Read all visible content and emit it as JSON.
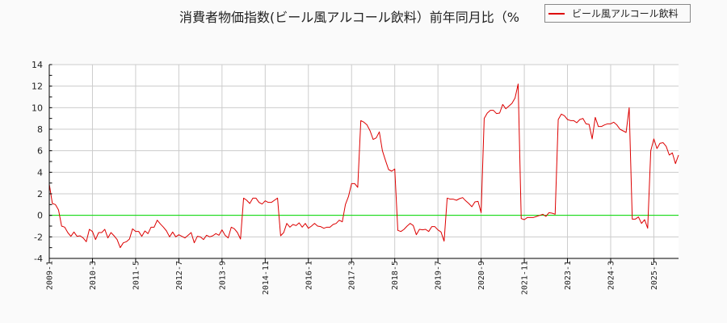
{
  "title": "消費者物価指数(ビール風アルコール飲料）前年同月比（%",
  "legend": {
    "label": "ビール風アルコール飲料",
    "color": "#dd0000"
  },
  "colors": {
    "series": "#dd0000",
    "zero_line": "#00dd00",
    "grid": "#cccccc",
    "axis": "#000000",
    "plot_bg": "#ffffff",
    "page_bg": "#fafafa"
  },
  "chart_data": {
    "type": "line",
    "title": "消費者物価指数(ビール風アルコール飲料）前年同月比（%",
    "xlabel": "",
    "ylabel": "",
    "ylim": [
      -4,
      14
    ],
    "yticks": [
      -4,
      -2,
      0,
      2,
      4,
      6,
      8,
      10,
      12,
      14
    ],
    "xtick_labels": [
      "2009-1",
      "2010-3",
      "2011-5",
      "2012-7",
      "2013-9",
      "2014-11",
      "2016-1",
      "2017-3",
      "2018-5",
      "2019-7",
      "2020-9",
      "2021-11",
      "2023-1",
      "2024-3",
      "2025-5"
    ],
    "xtick_month_index": [
      0,
      14,
      28,
      42,
      56,
      70,
      84,
      98,
      112,
      126,
      140,
      154,
      168,
      182,
      196
    ],
    "start_month": "2009-1",
    "grid": true,
    "reference_line": {
      "y": 0,
      "color": "#00dd00"
    },
    "legend_position": "top-right",
    "series": [
      {
        "name": "ビール風アルコール飲料",
        "color": "#dd0000",
        "values": [
          2.9,
          1.1,
          1.0,
          0.5,
          -1.0,
          -1.1,
          -1.6,
          -1.95,
          -1.55,
          -1.95,
          -1.9,
          -2.1,
          -2.45,
          -1.3,
          -1.5,
          -2.25,
          -1.6,
          -1.6,
          -1.3,
          -2.1,
          -1.6,
          -1.9,
          -2.25,
          -3.0,
          -2.55,
          -2.45,
          -2.2,
          -1.25,
          -1.5,
          -1.5,
          -1.95,
          -1.45,
          -1.7,
          -1.1,
          -1.1,
          -0.45,
          -0.8,
          -1.1,
          -1.45,
          -2.0,
          -1.55,
          -2.0,
          -1.8,
          -1.95,
          -2.1,
          -1.85,
          -1.6,
          -2.55,
          -1.95,
          -2.0,
          -2.25,
          -1.85,
          -2.0,
          -1.9,
          -1.7,
          -1.85,
          -1.35,
          -1.85,
          -2.1,
          -1.1,
          -1.25,
          -1.6,
          -2.2,
          1.6,
          1.4,
          1.1,
          1.6,
          1.6,
          1.2,
          1.05,
          1.35,
          1.2,
          1.2,
          1.4,
          1.6,
          -1.9,
          -1.6,
          -0.75,
          -1.1,
          -0.85,
          -0.95,
          -0.7,
          -1.1,
          -0.75,
          -1.2,
          -1.0,
          -0.75,
          -1.0,
          -1.05,
          -1.2,
          -1.1,
          -1.1,
          -0.85,
          -0.75,
          -0.45,
          -0.6,
          1.0,
          1.75,
          2.95,
          2.95,
          2.6,
          8.8,
          8.65,
          8.4,
          7.85,
          7.05,
          7.2,
          7.75,
          6.0,
          5.1,
          4.25,
          4.1,
          4.3,
          -1.4,
          -1.5,
          -1.3,
          -1.0,
          -0.75,
          -0.95,
          -1.8,
          -1.3,
          -1.35,
          -1.3,
          -1.5,
          -1.05,
          -1.05,
          -1.35,
          -1.55,
          -2.4,
          1.6,
          1.5,
          1.5,
          1.4,
          1.55,
          1.65,
          1.35,
          1.1,
          0.8,
          1.25,
          1.3,
          0.25,
          9.0,
          9.5,
          9.75,
          9.75,
          9.45,
          9.5,
          10.3,
          9.9,
          10.15,
          10.4,
          10.9,
          12.2,
          -0.3,
          -0.4,
          -0.2,
          -0.2,
          -0.2,
          -0.1,
          0.0,
          0.1,
          -0.1,
          0.25,
          0.2,
          0.1,
          8.9,
          9.4,
          9.25,
          8.9,
          8.8,
          8.8,
          8.6,
          8.9,
          9.0,
          8.5,
          8.45,
          7.1,
          9.1,
          8.25,
          8.25,
          8.4,
          8.5,
          8.5,
          8.65,
          8.4,
          8.0,
          7.85,
          7.7,
          10.0,
          -0.35,
          -0.35,
          -0.15,
          -0.75,
          -0.4,
          -1.2,
          6.0,
          7.1,
          6.2,
          6.7,
          6.75,
          6.4,
          5.6,
          5.8,
          4.8,
          5.6
        ]
      }
    ]
  }
}
